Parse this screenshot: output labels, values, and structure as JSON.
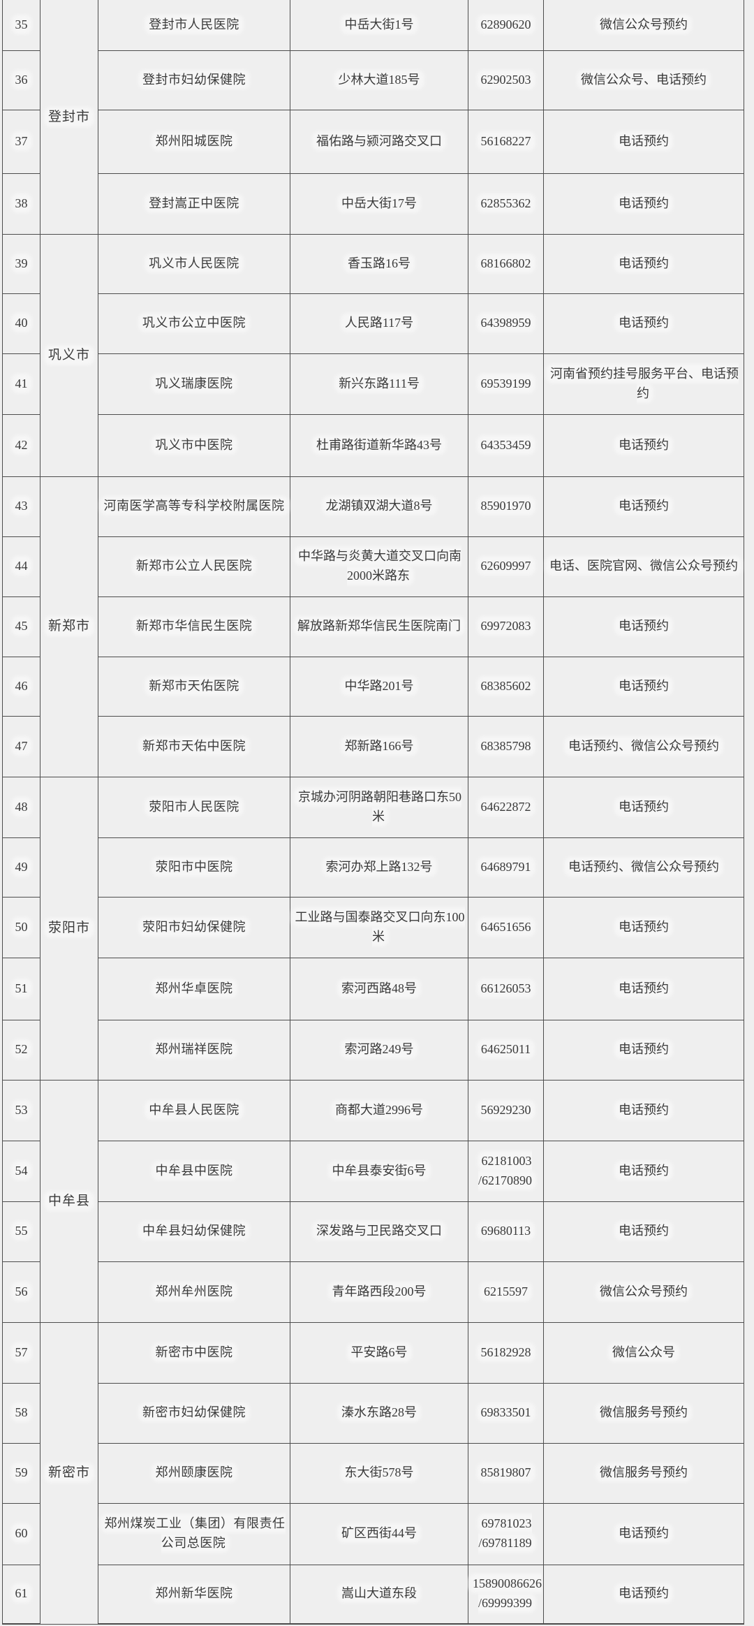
{
  "table": {
    "groups": [
      {
        "city": "登封市",
        "rows": [
          {
            "no": "35",
            "name": "登封市人民医院",
            "address": "中岳大街1号",
            "phone": "62890620",
            "booking": "微信公众号预约"
          },
          {
            "no": "36",
            "name": "登封市妇幼保健院",
            "address": "少林大道185号",
            "phone": "62902503",
            "booking": "微信公众号、电话预约"
          },
          {
            "no": "37",
            "name": "郑州阳城医院",
            "address": "福佑路与颍河路交叉口",
            "phone": "56168227",
            "booking": "电话预约"
          },
          {
            "no": "38",
            "name": "登封嵩正中医院",
            "address": "中岳大街17号",
            "phone": "62855362",
            "booking": "电话预约"
          }
        ]
      },
      {
        "city": "巩义市",
        "rows": [
          {
            "no": "39",
            "name": "巩义市人民医院",
            "address": "香玉路16号",
            "phone": "68166802",
            "booking": "电话预约"
          },
          {
            "no": "40",
            "name": "巩义市公立中医院",
            "address": "人民路117号",
            "phone": "64398959",
            "booking": "电话预约"
          },
          {
            "no": "41",
            "name": "巩义瑞康医院",
            "address": "新兴东路111号",
            "phone": "69539199",
            "booking": "河南省预约挂号服务平台、电话预约"
          },
          {
            "no": "42",
            "name": "巩义市中医院",
            "address": "杜甫路街道新华路43号",
            "phone": "64353459",
            "booking": "电话预约"
          }
        ]
      },
      {
        "city": "新郑市",
        "rows": [
          {
            "no": "43",
            "name": "河南医学高等专科学校附属医院",
            "address": "龙湖镇双湖大道8号",
            "phone": "85901970",
            "booking": "电话预约"
          },
          {
            "no": "44",
            "name": "新郑市公立人民医院",
            "address": "中华路与炎黄大道交叉口向南2000米路东",
            "phone": "62609997",
            "booking": "电话、医院官网、微信公众号预约"
          },
          {
            "no": "45",
            "name": "新郑市华信民生医院",
            "address": "解放路新郑华信民生医院南门",
            "phone": "69972083",
            "booking": "电话预约"
          },
          {
            "no": "46",
            "name": "新郑市天佑医院",
            "address": "中华路201号",
            "phone": "68385602",
            "booking": "电话预约"
          },
          {
            "no": "47",
            "name": "新郑市天佑中医院",
            "address": "郑新路166号",
            "phone": "68385798",
            "booking": "电话预约、微信公众号预约"
          }
        ]
      },
      {
        "city": "荥阳市",
        "rows": [
          {
            "no": "48",
            "name": "荥阳市人民医院",
            "address": "京城办河阴路朝阳巷路口东50米",
            "phone": "64622872",
            "booking": "电话预约"
          },
          {
            "no": "49",
            "name": "荥阳市中医院",
            "address": "索河办郑上路132号",
            "phone": "64689791",
            "booking": "电话预约、微信公众号预约"
          },
          {
            "no": "50",
            "name": "荥阳市妇幼保健院",
            "address": "工业路与国泰路交叉口向东100米",
            "phone": "64651656",
            "booking": "电话预约"
          },
          {
            "no": "51",
            "name": "郑州华卓医院",
            "address": "索河西路48号",
            "phone": "66126053",
            "booking": "电话预约"
          },
          {
            "no": "52",
            "name": "郑州瑞祥医院",
            "address": "索河路249号",
            "phone": "64625011",
            "booking": "电话预约"
          }
        ]
      },
      {
        "city": "中牟县",
        "rows": [
          {
            "no": "53",
            "name": "中牟县人民医院",
            "address": "商都大道2996号",
            "phone": "56929230",
            "booking": "电话预约"
          },
          {
            "no": "54",
            "name": "中牟县中医院",
            "address": "中牟县泰安街6号",
            "phone": "62181003\n/62170890",
            "booking": "电话预约"
          },
          {
            "no": "55",
            "name": "中牟县妇幼保健院",
            "address": "深发路与卫民路交叉口",
            "phone": "69680113",
            "booking": "电话预约"
          },
          {
            "no": "56",
            "name": "郑州牟州医院",
            "address": "青年路西段200号",
            "phone": "6215597",
            "booking": "微信公众号预约"
          }
        ]
      },
      {
        "city": "新密市",
        "rows": [
          {
            "no": "57",
            "name": "新密市中医院",
            "address": "平安路6号",
            "phone": "56182928",
            "booking": "微信公众号"
          },
          {
            "no": "58",
            "name": "新密市妇幼保健院",
            "address": "溱水东路28号",
            "phone": "69833501",
            "booking": "微信服务号预约"
          },
          {
            "no": "59",
            "name": "郑州颐康医院",
            "address": "东大街578号",
            "phone": "85819807",
            "booking": "微信服务号预约"
          },
          {
            "no": "60",
            "name": "郑州煤炭工业（集团）有限责任公司总医院",
            "address": "矿区西街44号",
            "phone": "69781023\n/69781189",
            "booking": "电话预约"
          },
          {
            "no": "61",
            "name": "郑州新华医院",
            "address": "嵩山大道东段",
            "phone": "15890086626\n/69999399",
            "booking": "电话预约"
          }
        ]
      }
    ]
  }
}
